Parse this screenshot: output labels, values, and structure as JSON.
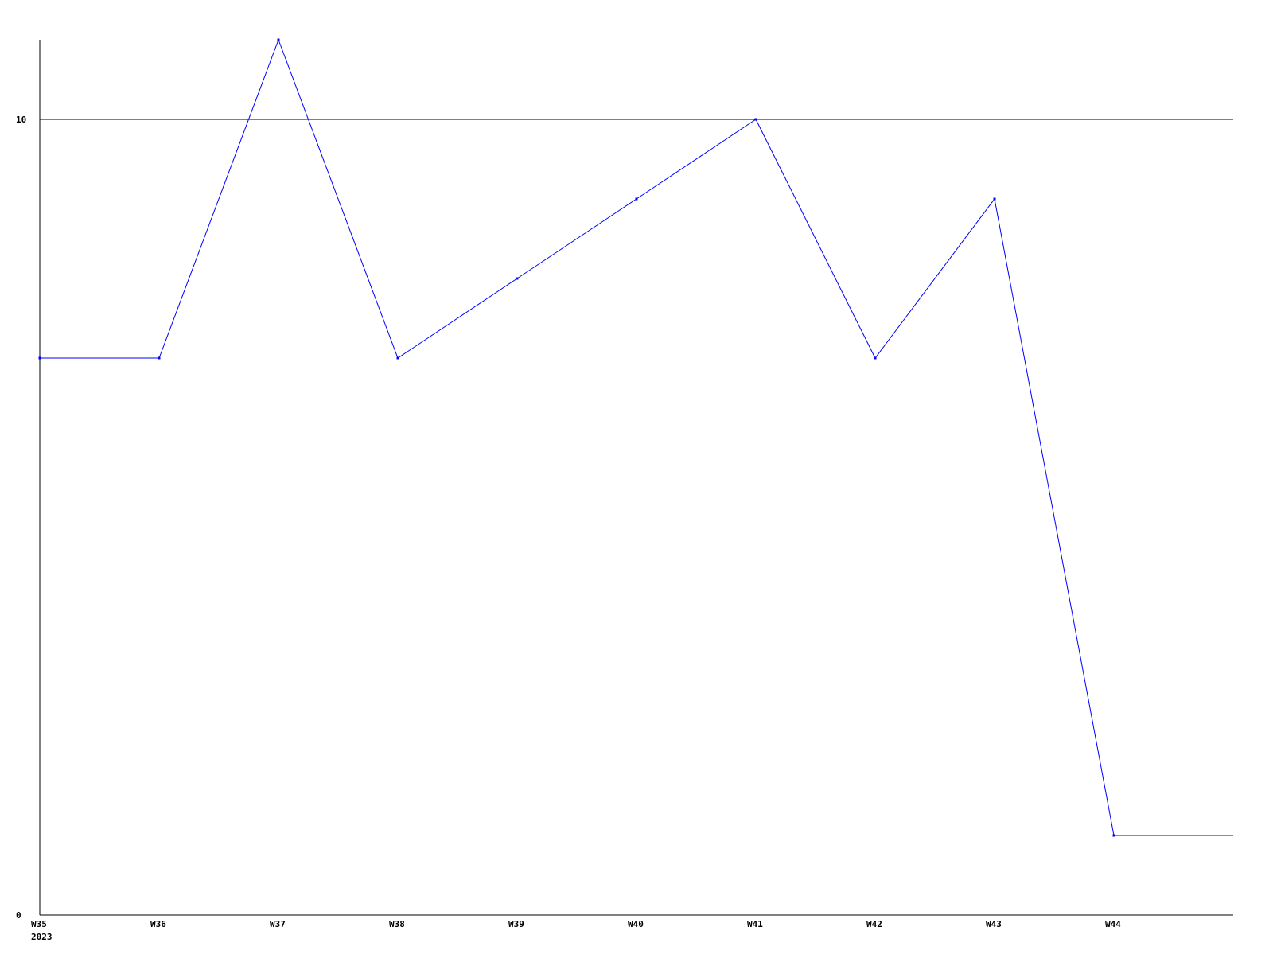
{
  "chart_data": {
    "type": "line",
    "title": "",
    "xlabel": "",
    "ylabel": "",
    "categories": [
      "W35",
      "W36",
      "W37",
      "W38",
      "W39",
      "W40",
      "W41",
      "W42",
      "W43",
      "W44"
    ],
    "year_label": "2023",
    "series": [
      {
        "values": [
          7,
          7,
          11,
          7,
          8,
          9,
          10,
          7,
          9,
          1
        ],
        "color": "#0000ff"
      }
    ],
    "ylim": [
      0,
      11
    ],
    "yticks": [
      0,
      10
    ],
    "ytick_labels": [
      "0",
      "10"
    ],
    "grid": "horizontal line at 10",
    "axis_color": "#000000"
  }
}
